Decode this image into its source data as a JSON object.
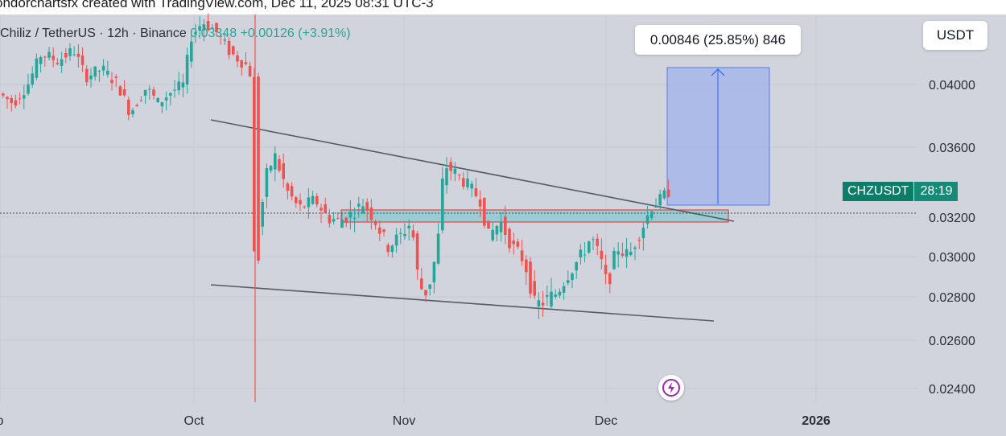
{
  "header": {
    "attribution": "ondorchartsfx created with TradingView.com, Dec 11, 2025 08:31 UTC-3"
  },
  "legend": {
    "symbol": "Chiliz / TetherUS · 12h · Binance",
    "price": "0.03348",
    "change": "+0.00126 (+3.91%)"
  },
  "currency_button": "USDT",
  "measure_label": "0.00846 (25.85%) 846",
  "price_tag": {
    "symbol": "CHZUSDT",
    "countdown": "28:19"
  },
  "bolt_icon": "lightning-bolt-icon",
  "colors": {
    "up": "#26a69a",
    "down": "#ef5350",
    "measure": "#2962ff",
    "tag": "#0d7d6a",
    "zone": "#84c7cf"
  },
  "chart_data": {
    "type": "candlestick",
    "symbol": "CHZUSDT",
    "interval": "12h",
    "x_ticks": [
      "p",
      "Oct",
      "Nov",
      "Dec",
      "2026"
    ],
    "y_ticks": [
      "0.04000",
      "0.03600",
      "0.03200",
      "0.03000",
      "0.02800",
      "0.02600",
      "0.02400"
    ],
    "ylim": [
      0.0234,
      0.0432
    ],
    "current_price": 0.0322,
    "sample_candles": [
      {
        "date": "Oct 10",
        "open": 0.0385,
        "close": 0.0296
      },
      {
        "date": "Oct 12",
        "open": 0.03,
        "close": 0.0355
      },
      {
        "date": "Nov 1",
        "open": 0.0296,
        "close": 0.0273
      },
      {
        "date": "Nov 6",
        "open": 0.028,
        "close": 0.035
      },
      {
        "date": "Nov 22",
        "open": 0.0278,
        "close": 0.0274
      },
      {
        "date": "Dec 6",
        "open": 0.03,
        "close": 0.0322
      },
      {
        "date": "Dec 10",
        "open": 0.0322,
        "close": 0.0335
      }
    ],
    "annotations": {
      "upper_trendline": {
        "from": {
          "date": "Sep 16",
          "price": 0.0353
        },
        "to": {
          "date": "Dec 17",
          "price": 0.0317
        }
      },
      "lower_trendline": {
        "from": {
          "date": "Sep 16",
          "price": 0.0287
        },
        "to": {
          "date": "Dec 15",
          "price": 0.0266
        }
      },
      "support_zone": {
        "from": "Oct 29",
        "to": "Dec 16",
        "low": 0.0317,
        "high": 0.0322
      },
      "measure": {
        "from_price": 0.0325,
        "to_price": 0.041,
        "change": 0.00846,
        "percent": 25.85,
        "bars": 846
      }
    }
  }
}
